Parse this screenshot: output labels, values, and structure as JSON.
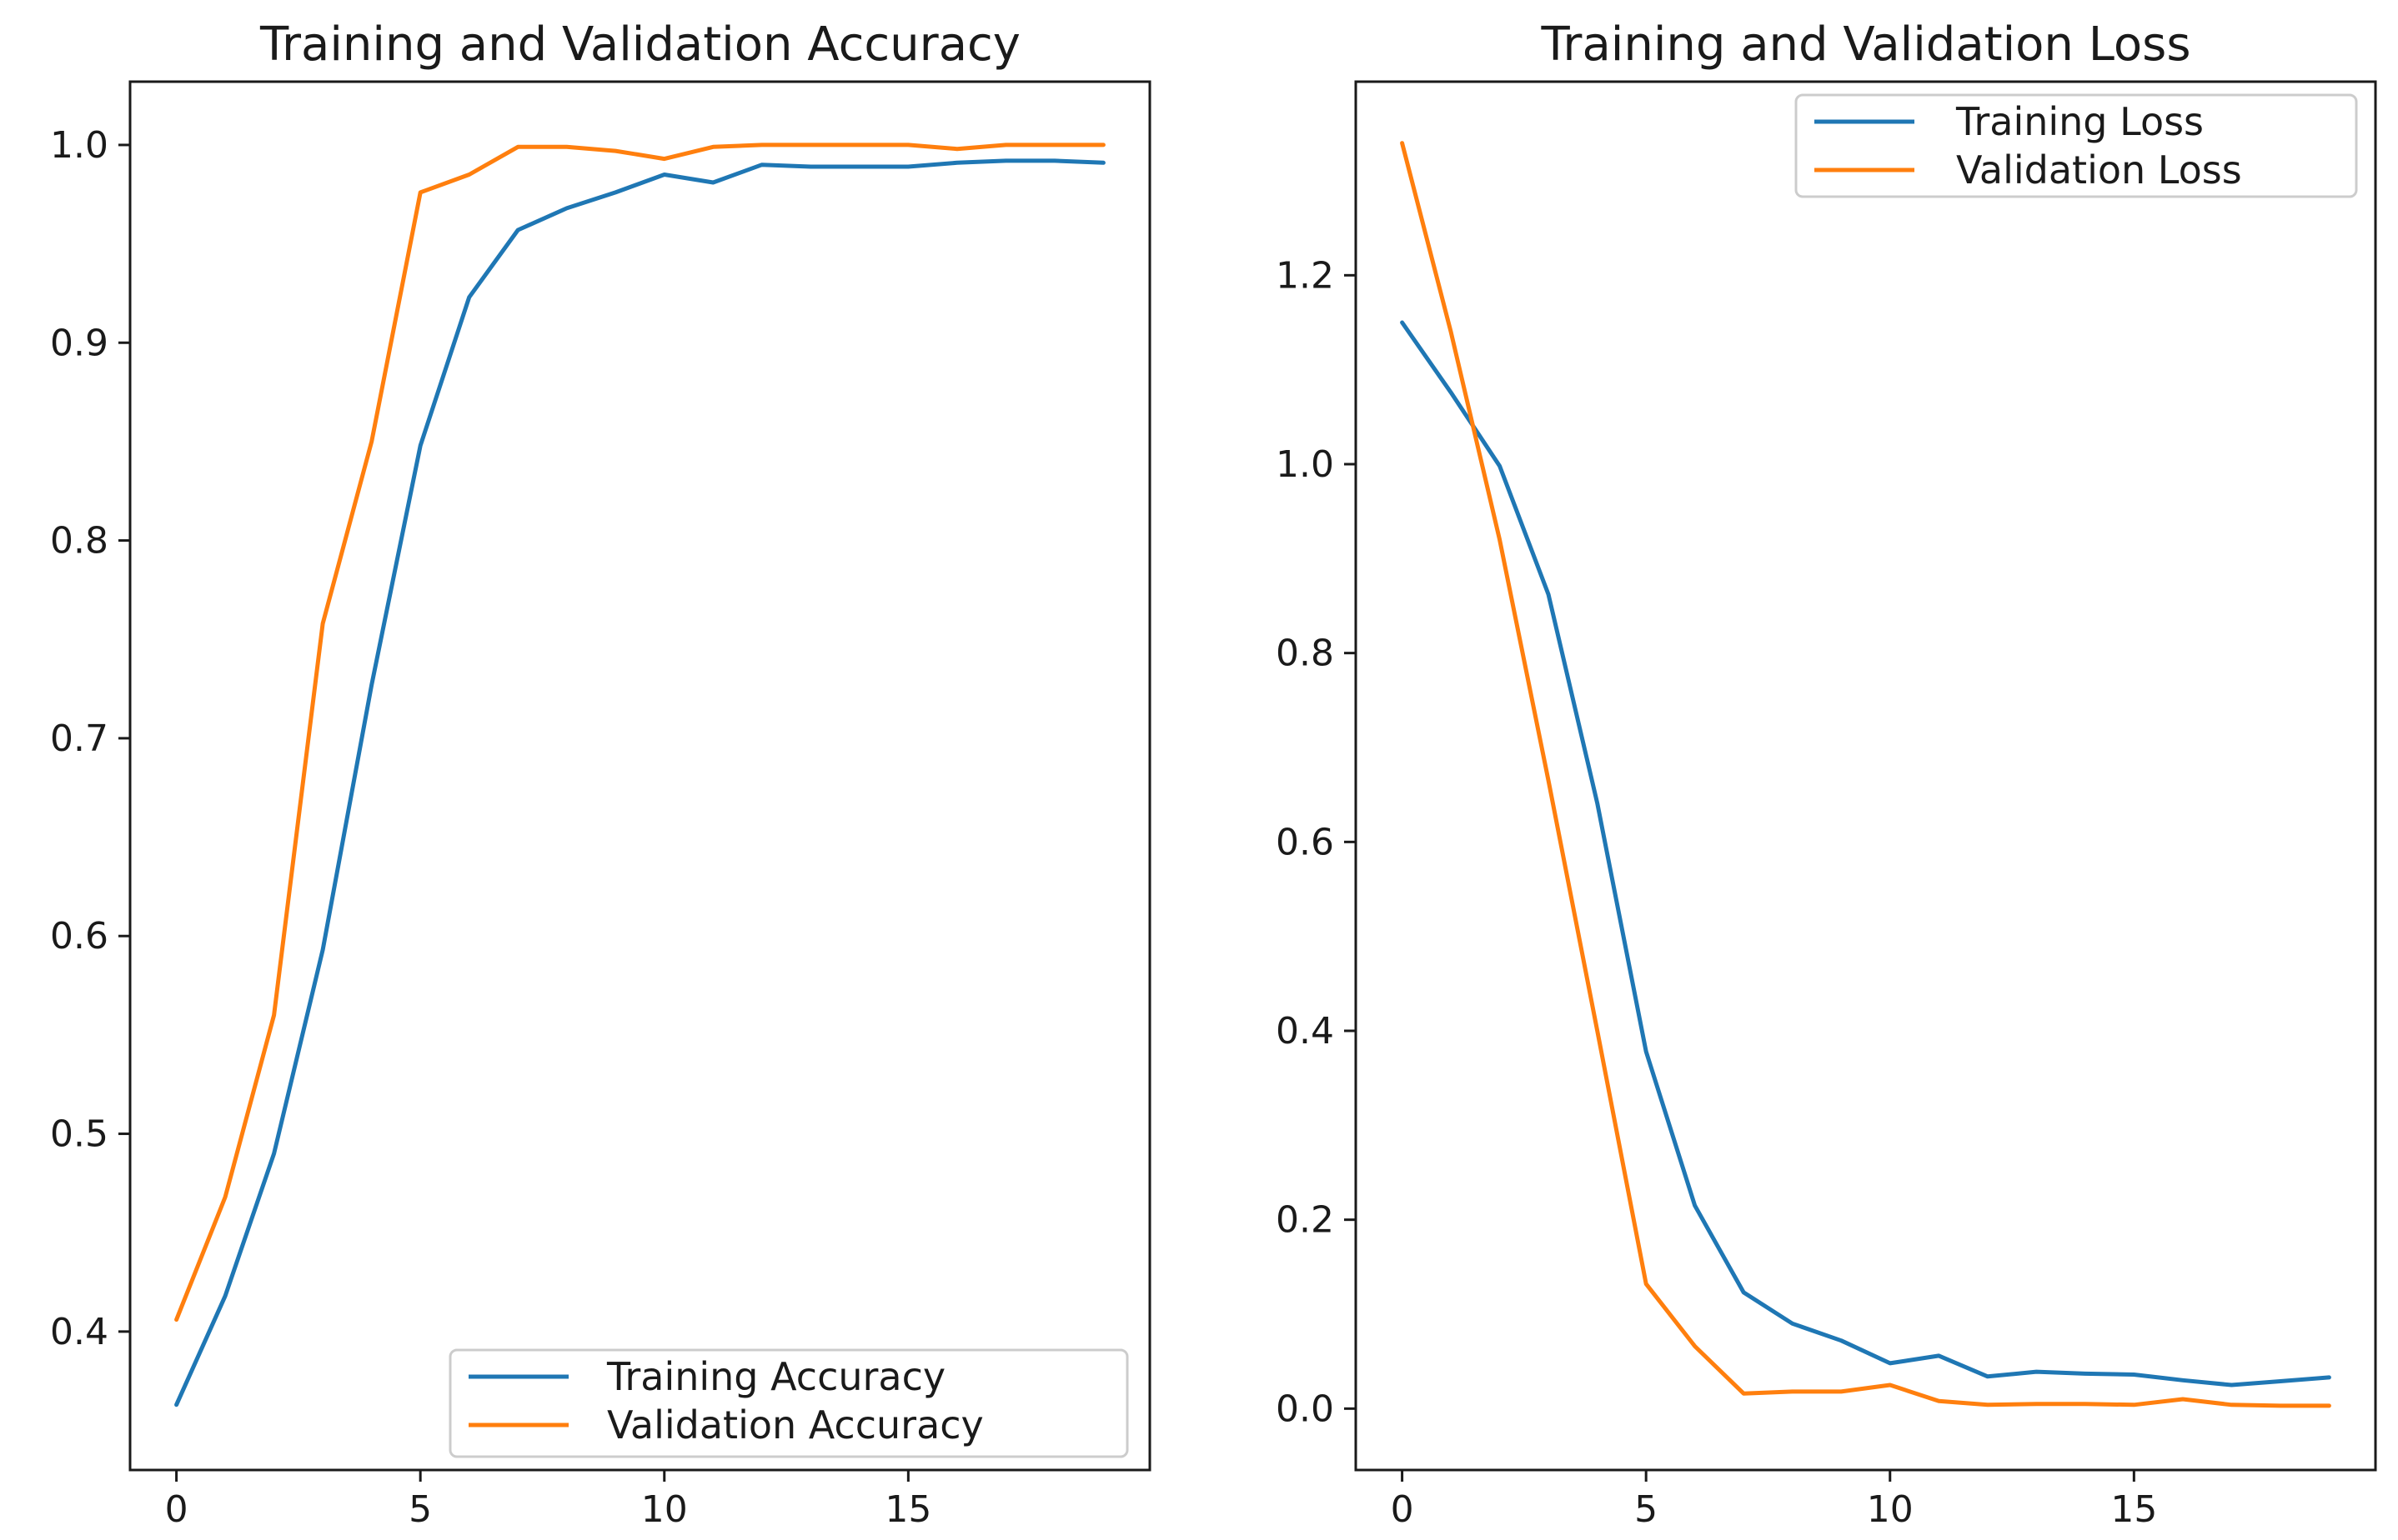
{
  "chart_data": [
    {
      "type": "line",
      "title": "Training and Validation Accuracy",
      "xlabel": "",
      "ylabel": "",
      "xlim": [
        -0.95,
        19.95
      ],
      "ylim": [
        0.33,
        1.032
      ],
      "xticks": [
        0,
        5,
        10,
        15
      ],
      "xtick_labels": [
        "0",
        "5",
        "10",
        "15"
      ],
      "yticks": [
        0.4,
        0.5,
        0.6,
        0.7,
        0.8,
        0.9,
        1.0
      ],
      "ytick_labels": [
        "0.4",
        "0.5",
        "0.6",
        "0.7",
        "0.8",
        "0.9",
        "1.0"
      ],
      "legend_position": "lower-right",
      "x": [
        0,
        1,
        2,
        3,
        4,
        5,
        6,
        7,
        8,
        9,
        10,
        11,
        12,
        13,
        14,
        15,
        16,
        17,
        18,
        19
      ],
      "series": [
        {
          "name": "Training Accuracy",
          "color": "#1f77b4",
          "values": [
            0.363,
            0.418,
            0.49,
            0.593,
            0.727,
            0.848,
            0.923,
            0.957,
            0.968,
            0.976,
            0.985,
            0.981,
            0.99,
            0.989,
            0.989,
            0.989,
            0.991,
            0.992,
            0.992,
            0.991
          ]
        },
        {
          "name": "Validation Accuracy",
          "color": "#ff7f0e",
          "values": [
            0.406,
            0.468,
            0.56,
            0.758,
            0.85,
            0.976,
            0.985,
            0.999,
            0.999,
            0.997,
            0.993,
            0.999,
            1.0,
            1.0,
            1.0,
            1.0,
            0.998,
            1.0,
            1.0,
            1.0
          ]
        }
      ]
    },
    {
      "type": "line",
      "title": "Training and Validation Loss",
      "xlabel": "",
      "ylabel": "",
      "xlim": [
        -0.95,
        19.95
      ],
      "ylim": [
        -0.065,
        1.405
      ],
      "xticks": [
        0,
        5,
        10,
        15
      ],
      "xtick_labels": [
        "0",
        "5",
        "10",
        "15"
      ],
      "yticks": [
        0.0,
        0.2,
        0.4,
        0.6,
        0.8,
        1.0,
        1.2
      ],
      "ytick_labels": [
        "0.0",
        "0.2",
        "0.4",
        "0.6",
        "0.8",
        "1.0",
        "1.2"
      ],
      "legend_position": "upper-right",
      "x": [
        0,
        1,
        2,
        3,
        4,
        5,
        6,
        7,
        8,
        9,
        10,
        11,
        12,
        13,
        14,
        15,
        16,
        17,
        18,
        19
      ],
      "series": [
        {
          "name": "Training Loss",
          "color": "#1f77b4",
          "values": [
            1.15,
            1.076,
            0.998,
            0.862,
            0.641,
            0.378,
            0.215,
            0.123,
            0.09,
            0.072,
            0.048,
            0.056,
            0.034,
            0.039,
            0.037,
            0.036,
            0.03,
            0.025,
            0.029,
            0.033
          ]
        },
        {
          "name": "Validation Loss",
          "color": "#ff7f0e",
          "values": [
            1.34,
            1.14,
            0.92,
            0.665,
            0.4,
            0.132,
            0.066,
            0.016,
            0.018,
            0.018,
            0.025,
            0.008,
            0.004,
            0.005,
            0.005,
            0.004,
            0.01,
            0.004,
            0.003,
            0.003
          ]
        }
      ]
    }
  ]
}
